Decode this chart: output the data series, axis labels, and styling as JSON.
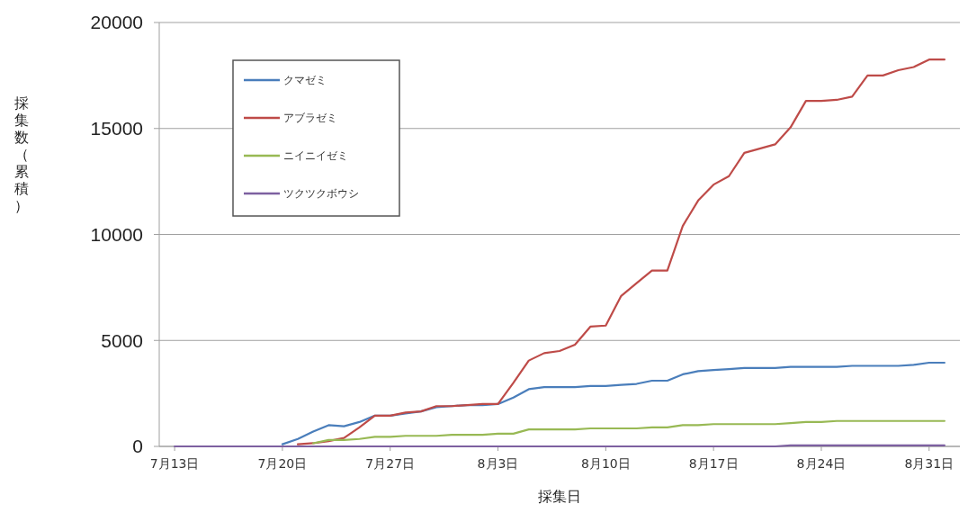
{
  "chart_data": {
    "type": "line",
    "xlabel": "採集日",
    "ylabel": "採集数（累積）",
    "x": [
      "--07-13",
      "--07-14",
      "--07-15",
      "--07-16",
      "--07-17",
      "--07-18",
      "--07-19",
      "--07-20",
      "--07-21",
      "--07-22",
      "--07-23",
      "--07-24",
      "--07-25",
      "--07-26",
      "--07-27",
      "--07-28",
      "--07-29",
      "--07-30",
      "--07-31",
      "--08-01",
      "--08-02",
      "--08-03",
      "--08-04",
      "--08-05",
      "--08-06",
      "--08-07",
      "--08-08",
      "--08-09",
      "--08-10",
      "--08-11",
      "--08-12",
      "--08-13",
      "--08-14",
      "--08-15",
      "--08-16",
      "--08-17",
      "--08-18",
      "--08-19",
      "--08-20",
      "--08-21",
      "--08-22",
      "--08-23",
      "--08-24",
      "--08-25",
      "--08-26",
      "--08-27",
      "--08-28",
      "--08-29",
      "--08-30",
      "--08-31",
      "--09-01"
    ],
    "series": [
      {
        "name": "クマゼミ",
        "color": "#4a7ebb",
        "values": [
          null,
          null,
          null,
          null,
          null,
          null,
          null,
          100,
          350,
          700,
          1000,
          950,
          1150,
          1450,
          1450,
          1550,
          1650,
          1850,
          1900,
          1950,
          1950,
          2000,
          2300,
          2700,
          2800,
          2800,
          2800,
          2850,
          2850,
          2900,
          2950,
          3100,
          3100,
          3400,
          3550,
          3600,
          3650,
          3700,
          3700,
          3700,
          3750,
          3750,
          3750,
          3750,
          3800,
          3800,
          3800,
          3800,
          3850,
          3950,
          3950
        ]
      },
      {
        "name": "アブラゼミ",
        "color": "#be4b48",
        "values": [
          null,
          null,
          null,
          null,
          null,
          null,
          null,
          null,
          100,
          150,
          250,
          400,
          900,
          1450,
          1450,
          1600,
          1650,
          1900,
          1900,
          1950,
          2000,
          2000,
          3000,
          4050,
          4400,
          4500,
          4800,
          5650,
          5700,
          7100,
          7700,
          8300,
          8300,
          10400,
          11600,
          12350,
          12750,
          13850,
          14050,
          14250,
          15050,
          16300,
          16300,
          16350,
          16500,
          17500,
          17500,
          17750,
          17900,
          18250,
          18250
        ]
      },
      {
        "name": "ニイニイゼミ",
        "color": "#98b954",
        "values": [
          null,
          null,
          null,
          null,
          null,
          null,
          null,
          null,
          null,
          150,
          300,
          300,
          350,
          450,
          450,
          500,
          500,
          500,
          550,
          550,
          550,
          600,
          600,
          800,
          800,
          800,
          800,
          850,
          850,
          850,
          850,
          900,
          900,
          1000,
          1000,
          1050,
          1050,
          1050,
          1050,
          1050,
          1100,
          1150,
          1150,
          1200,
          1200,
          1200,
          1200,
          1200,
          1200,
          1200,
          1200
        ]
      },
      {
        "name": "ツクツクボウシ",
        "color": "#7d60a0",
        "values": [
          0,
          0,
          0,
          0,
          0,
          0,
          0,
          0,
          0,
          0,
          0,
          0,
          0,
          0,
          0,
          0,
          0,
          0,
          0,
          0,
          0,
          0,
          0,
          0,
          0,
          0,
          0,
          0,
          0,
          0,
          0,
          0,
          0,
          0,
          0,
          0,
          0,
          0,
          0,
          0,
          50,
          50,
          50,
          50,
          50,
          50,
          50,
          50,
          50,
          50,
          50
        ]
      }
    ],
    "xlim": [
      "--07-12",
      "--09-02"
    ],
    "xticks": [
      {
        "value": "--07-13",
        "label": "7月13日"
      },
      {
        "value": "--07-20",
        "label": "7月20日"
      },
      {
        "value": "--07-27",
        "label": "7月27日"
      },
      {
        "value": "--08-03",
        "label": "8月3日"
      },
      {
        "value": "--08-10",
        "label": "8月10日"
      },
      {
        "value": "--08-17",
        "label": "8月17日"
      },
      {
        "value": "--08-24",
        "label": "8月24日"
      },
      {
        "value": "--08-31",
        "label": "8月31日"
      }
    ],
    "ylim": [
      0,
      20000
    ],
    "yticks": [
      0,
      5000,
      10000,
      15000,
      20000
    ],
    "grid": "y",
    "legend": "top left",
    "marker": "none",
    "line_style": "solid"
  }
}
